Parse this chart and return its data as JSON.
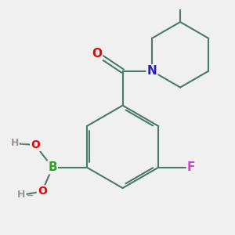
{
  "background_color": "#f0f0f0",
  "bond_color": "#4a7a6a",
  "bond_width": 1.5,
  "dbo": 0.07,
  "atom_colors": {
    "O": "#ee0000",
    "N": "#2222cc",
    "B": "#22aa22",
    "F": "#cc44cc",
    "H": "#999999",
    "C": "#4a7a6a"
  },
  "figsize": [
    3.0,
    3.0
  ],
  "dpi": 100
}
